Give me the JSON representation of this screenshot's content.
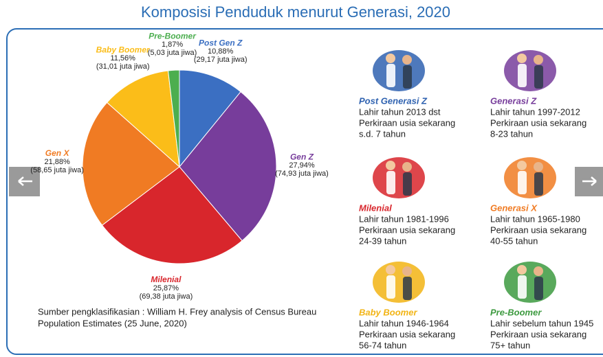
{
  "chart_data": {
    "type": "pie",
    "title": "Komposisi Penduduk menurut Generasi, 2020",
    "categories": [
      "Post Gen Z",
      "Gen Z",
      "Milenial",
      "Gen X",
      "Baby Boomer",
      "Pre-Boomer"
    ],
    "values": [
      10.88,
      27.94,
      25.87,
      21.88,
      11.56,
      1.87
    ],
    "value_labels": [
      "10,88%",
      "27,94%",
      "25,87%",
      "21,88%",
      "11,56%",
      "1,87%"
    ],
    "population_labels": [
      "(29,17 juta jiwa)",
      "(74,93 juta jiwa)",
      "(69,38 juta jiwa)",
      "(58,65 juta jiwa)",
      "(31,01 juta jiwa)",
      "(5,03 juta jiwa)"
    ],
    "colors": [
      "#3b6fc2",
      "#773d9b",
      "#d8262c",
      "#f07b23",
      "#fbbd19",
      "#4cae4f"
    ]
  },
  "generations": [
    {
      "name": "Post Generasi Z",
      "color": "#2f62b0",
      "lines": [
        "Lahir tahun 2013 dst",
        "Perkiraan usia sekarang",
        "s.d. 7 tahun"
      ]
    },
    {
      "name": "Generasi Z",
      "color": "#773d9b",
      "lines": [
        "Lahir tahun 1997-2012",
        "Perkiraan usia sekarang",
        "8-23 tahun"
      ]
    },
    {
      "name": "Milenial",
      "color": "#d8262c",
      "lines": [
        "Lahir tahun 1981-1996",
        "Perkiraan usia sekarang",
        "24-39 tahun"
      ]
    },
    {
      "name": "Generasi X",
      "color": "#f07b23",
      "lines": [
        "Lahir tahun 1965-1980",
        "Perkiraan usia sekarang",
        "40-55 tahun"
      ]
    },
    {
      "name": "Baby Boomer",
      "color": "#f2b414",
      "lines": [
        "Lahir tahun 1946-1964",
        "Perkiraan usia sekarang",
        "56-74 tahun"
      ]
    },
    {
      "name": "Pre-Boomer",
      "color": "#3c9a3f",
      "lines": [
        "Lahir sebelum tahun 1945",
        "Perkiraan usia sekarang",
        "75+ tahun"
      ]
    }
  ],
  "source": [
    "Sumber pengklasifikasian : William H. Frey analysis of Census Bureau",
    "Population Estimates (25 June, 2020)"
  ]
}
